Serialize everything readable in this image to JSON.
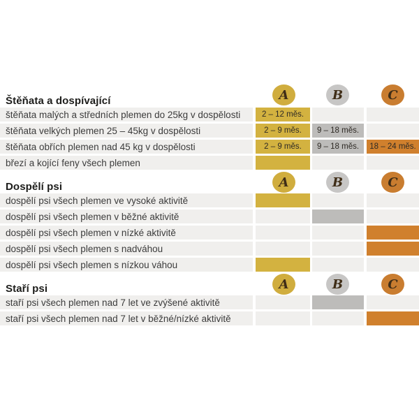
{
  "colors": {
    "page_background": "#ffffff",
    "row_background": "#f0efed",
    "label_text": "#3c3c3c",
    "header_text": "#1d1d1b",
    "cell_text": "#2e2a25",
    "circle_letter": "#3f2d17"
  },
  "legend_columns": [
    {
      "id": "A",
      "label": "A",
      "circle_color": "#d0ad3e",
      "cell_color": "#d3b240"
    },
    {
      "id": "B",
      "label": "B",
      "circle_color": "#c7c6c5",
      "cell_color": "#bdbcba"
    },
    {
      "id": "C",
      "label": "C",
      "circle_color": "#c97d30",
      "cell_color": "#d0802d"
    }
  ],
  "chart_data": {
    "type": "table",
    "column_headers": [
      "A",
      "B",
      "C"
    ],
    "sections": [
      {
        "title": "Štěňata a dospívající",
        "rows": [
          {
            "label": "štěňata malých a středních plemen do 25kg v dospělosti",
            "cells": [
              {
                "col": "A",
                "filled": true,
                "text": "2 – 12 měs."
              },
              {
                "col": "B",
                "filled": false,
                "text": ""
              },
              {
                "col": "C",
                "filled": false,
                "text": ""
              }
            ]
          },
          {
            "label": "štěňata velkých plemen 25 – 45kg v dospělosti",
            "cells": [
              {
                "col": "A",
                "filled": true,
                "text": "2 – 9 měs."
              },
              {
                "col": "B",
                "filled": true,
                "text": "9 – 18 měs."
              },
              {
                "col": "C",
                "filled": false,
                "text": ""
              }
            ]
          },
          {
            "label": "štěňata obřích plemen nad 45 kg v dospělosti",
            "cells": [
              {
                "col": "A",
                "filled": true,
                "text": "2 – 9 měs."
              },
              {
                "col": "B",
                "filled": true,
                "text": "9 – 18 měs."
              },
              {
                "col": "C",
                "filled": true,
                "text": "18 – 24 měs."
              }
            ]
          },
          {
            "label": "březí a kojící feny všech plemen",
            "cells": [
              {
                "col": "A",
                "filled": true,
                "text": ""
              },
              {
                "col": "B",
                "filled": false,
                "text": ""
              },
              {
                "col": "C",
                "filled": false,
                "text": ""
              }
            ]
          }
        ]
      },
      {
        "title": "Dospělí psi",
        "rows": [
          {
            "label": "dospělí psi všech plemen ve vysoké aktivitě",
            "cells": [
              {
                "col": "A",
                "filled": true,
                "text": ""
              },
              {
                "col": "B",
                "filled": false,
                "text": ""
              },
              {
                "col": "C",
                "filled": false,
                "text": ""
              }
            ]
          },
          {
            "label": "dospělí psi všech plemen v běžné aktivitě",
            "cells": [
              {
                "col": "A",
                "filled": false,
                "text": ""
              },
              {
                "col": "B",
                "filled": true,
                "text": ""
              },
              {
                "col": "C",
                "filled": false,
                "text": ""
              }
            ]
          },
          {
            "label": "dospělí psi všech plemen v nízké aktivitě",
            "cells": [
              {
                "col": "A",
                "filled": false,
                "text": ""
              },
              {
                "col": "B",
                "filled": false,
                "text": ""
              },
              {
                "col": "C",
                "filled": true,
                "text": ""
              }
            ]
          },
          {
            "label": "dospělí psi všech plemen s nadváhou",
            "cells": [
              {
                "col": "A",
                "filled": false,
                "text": ""
              },
              {
                "col": "B",
                "filled": false,
                "text": ""
              },
              {
                "col": "C",
                "filled": true,
                "text": ""
              }
            ]
          },
          {
            "label": "dospělí psi všech plemen s nízkou váhou",
            "cells": [
              {
                "col": "A",
                "filled": true,
                "text": ""
              },
              {
                "col": "B",
                "filled": false,
                "text": ""
              },
              {
                "col": "C",
                "filled": false,
                "text": ""
              }
            ]
          }
        ]
      },
      {
        "title": "Staří psi",
        "rows": [
          {
            "label": "staří psi všech plemen nad 7 let ve zvýšené aktivitě",
            "cells": [
              {
                "col": "A",
                "filled": false,
                "text": ""
              },
              {
                "col": "B",
                "filled": true,
                "text": ""
              },
              {
                "col": "C",
                "filled": false,
                "text": ""
              }
            ]
          },
          {
            "label": "staří psi všech plemen nad 7 let v běžné/nízké aktivitě",
            "cells": [
              {
                "col": "A",
                "filled": false,
                "text": ""
              },
              {
                "col": "B",
                "filled": false,
                "text": ""
              },
              {
                "col": "C",
                "filled": true,
                "text": ""
              }
            ]
          }
        ]
      }
    ]
  }
}
